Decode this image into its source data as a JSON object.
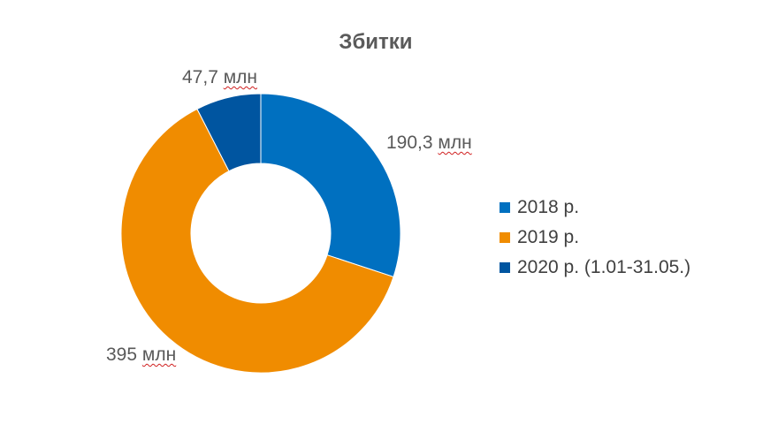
{
  "chart_data": {
    "type": "pie",
    "donut": true,
    "title": "Збитки",
    "series": [
      {
        "label": "2018 р.",
        "value": 190.3,
        "data_label_value": "190,3",
        "unit": "млн",
        "color": "#0070c0"
      },
      {
        "label": "2019 р.",
        "value": 395,
        "data_label_value": "395",
        "unit": "млн",
        "color": "#f08c00"
      },
      {
        "label": "2020 р. (1.01-31.05.)",
        "value": 47.7,
        "data_label_value": "47,7",
        "unit": "млн",
        "color": "#0055a0"
      }
    ],
    "legend_position": "right"
  }
}
